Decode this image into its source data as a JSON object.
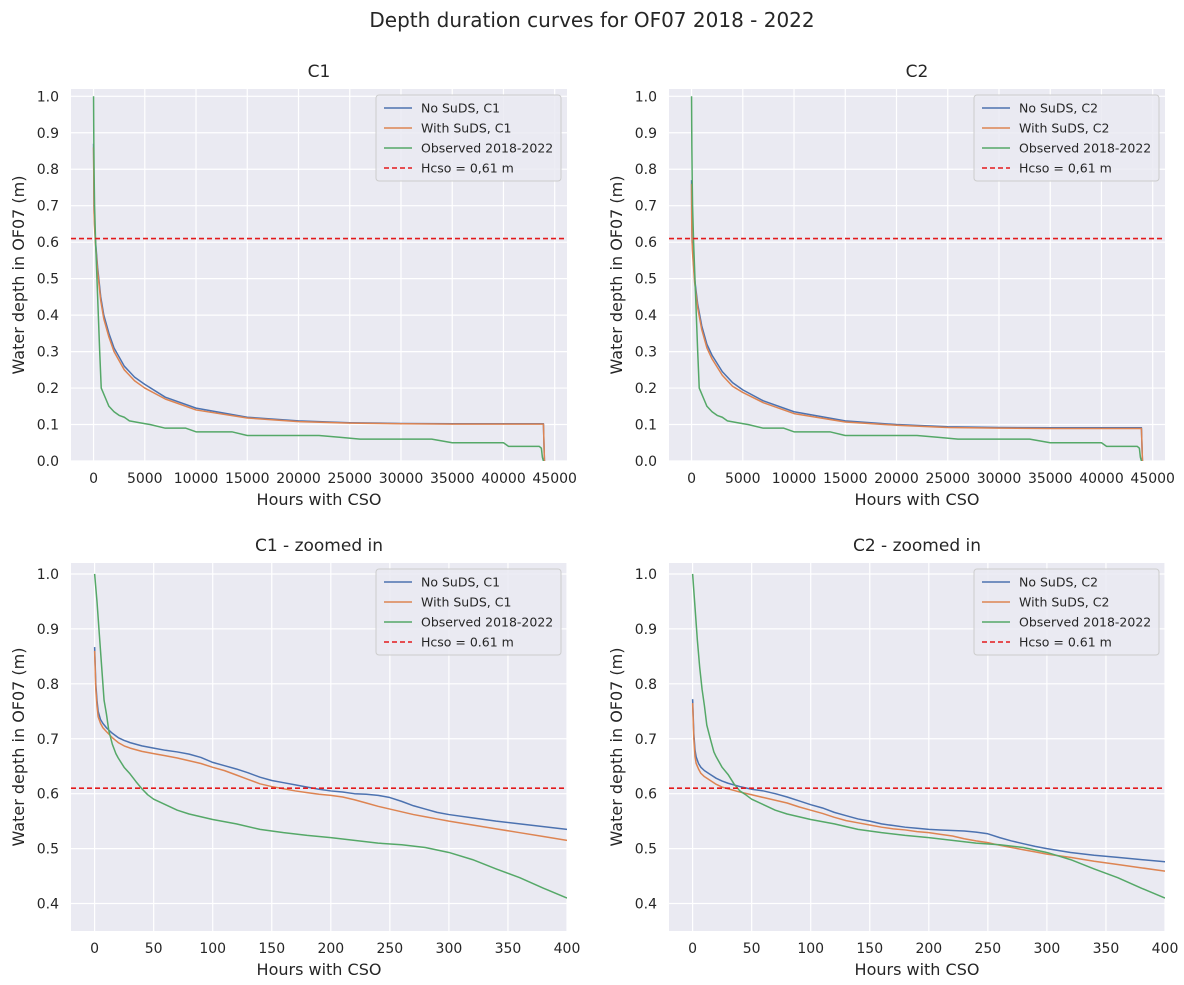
{
  "figure": {
    "title": "Depth duration curves for OF07 2018 - 2022"
  },
  "colors": {
    "background": "#eaeaf2",
    "grid": "#ffffff",
    "no_suds": "#4c72b0",
    "with_suds": "#dd8452",
    "observed": "#55a868",
    "hcso": "#e31a1c"
  },
  "chart_data": [
    {
      "type": "line",
      "title": "C1",
      "xlabel": "Hours with CSO",
      "ylabel": "Water depth in OF07 (m)",
      "xlim": [
        -2200,
        46200
      ],
      "ylim": [
        0,
        1.02
      ],
      "xticks": [
        0,
        5000,
        10000,
        15000,
        20000,
        25000,
        30000,
        35000,
        40000,
        45000
      ],
      "yticks": [
        0.0,
        0.1,
        0.2,
        0.3,
        0.4,
        0.5,
        0.6,
        0.7,
        0.8,
        0.9,
        1.0
      ],
      "ytick_labels": [
        "0.0",
        "0.1",
        "0.2",
        "0.3",
        "0.4",
        "0.5",
        "0.6",
        "0.7",
        "0.8",
        "0.9",
        "1.0"
      ],
      "grid": true,
      "legend_position": "top-right",
      "hline": {
        "y": 0.61,
        "label": "Hcso = 0,61 m"
      },
      "series": [
        {
          "name": "No SuDS, C1",
          "x": [
            0,
            50,
            100,
            200,
            400,
            700,
            1000,
            1500,
            2000,
            3000,
            4000,
            5000,
            7000,
            10000,
            15000,
            20000,
            25000,
            30000,
            35000,
            40000,
            43900,
            43950,
            44000
          ],
          "y": [
            0.87,
            0.69,
            0.65,
            0.6,
            0.53,
            0.45,
            0.4,
            0.35,
            0.31,
            0.26,
            0.23,
            0.21,
            0.175,
            0.145,
            0.12,
            0.11,
            0.105,
            0.103,
            0.102,
            0.102,
            0.102,
            0.05,
            0.0
          ]
        },
        {
          "name": "With SuDS, C1",
          "x": [
            0,
            50,
            100,
            200,
            400,
            700,
            1000,
            1500,
            2000,
            3000,
            4000,
            5000,
            7000,
            10000,
            15000,
            20000,
            25000,
            30000,
            35000,
            40000,
            43900,
            43950,
            44000
          ],
          "y": [
            0.86,
            0.68,
            0.64,
            0.59,
            0.52,
            0.44,
            0.39,
            0.34,
            0.3,
            0.25,
            0.22,
            0.2,
            0.17,
            0.14,
            0.118,
            0.108,
            0.104,
            0.102,
            0.101,
            0.101,
            0.101,
            0.05,
            0.0
          ]
        },
        {
          "name": "Observed 2018-2022",
          "x": [
            0,
            30,
            60,
            100,
            200,
            400,
            600,
            750,
            900,
            1200,
            1500,
            2000,
            2500,
            3000,
            3500,
            4500,
            5500,
            7000,
            9000,
            10000,
            12000,
            13500,
            15000,
            17000,
            20000,
            22000,
            24000,
            26000,
            30000,
            33000,
            35000,
            38000,
            40000,
            40500,
            43500,
            43700,
            43800,
            43900
          ],
          "y": [
            1.0,
            0.86,
            0.78,
            0.7,
            0.6,
            0.45,
            0.3,
            0.2,
            0.19,
            0.17,
            0.15,
            0.135,
            0.125,
            0.12,
            0.11,
            0.105,
            0.1,
            0.09,
            0.09,
            0.08,
            0.08,
            0.08,
            0.07,
            0.07,
            0.07,
            0.07,
            0.065,
            0.06,
            0.06,
            0.06,
            0.05,
            0.05,
            0.05,
            0.04,
            0.04,
            0.035,
            0.01,
            0.0
          ]
        }
      ]
    },
    {
      "type": "line",
      "title": "C2",
      "xlabel": "Hours with CSO",
      "ylabel": "Water depth in OF07 (m)",
      "xlim": [
        -2200,
        46200
      ],
      "ylim": [
        0,
        1.02
      ],
      "xticks": [
        0,
        5000,
        10000,
        15000,
        20000,
        25000,
        30000,
        35000,
        40000,
        45000
      ],
      "yticks": [
        0.0,
        0.1,
        0.2,
        0.3,
        0.4,
        0.5,
        0.6,
        0.7,
        0.8,
        0.9,
        1.0
      ],
      "ytick_labels": [
        "0.0",
        "0.1",
        "0.2",
        "0.3",
        "0.4",
        "0.5",
        "0.6",
        "0.7",
        "0.8",
        "0.9",
        "1.0"
      ],
      "grid": true,
      "legend_position": "top-right",
      "hline": {
        "y": 0.61,
        "label": "Hcso = 0,61 m"
      },
      "series": [
        {
          "name": "No SuDS, C2",
          "x": [
            0,
            20,
            50,
            100,
            300,
            600,
            1000,
            1500,
            2000,
            3000,
            4000,
            5000,
            7000,
            10000,
            15000,
            20000,
            25000,
            30000,
            35000,
            40000,
            43900,
            43950,
            44000
          ],
          "y": [
            0.77,
            0.66,
            0.61,
            0.58,
            0.5,
            0.43,
            0.37,
            0.32,
            0.29,
            0.245,
            0.215,
            0.195,
            0.165,
            0.135,
            0.11,
            0.1,
            0.094,
            0.092,
            0.091,
            0.091,
            0.091,
            0.045,
            0.0
          ]
        },
        {
          "name": "With SuDS, C2",
          "x": [
            0,
            20,
            50,
            100,
            300,
            600,
            1000,
            1500,
            2000,
            3000,
            4000,
            5000,
            7000,
            10000,
            15000,
            20000,
            25000,
            30000,
            35000,
            40000,
            43900,
            43950,
            44000
          ],
          "y": [
            0.76,
            0.65,
            0.6,
            0.57,
            0.49,
            0.42,
            0.36,
            0.31,
            0.28,
            0.235,
            0.205,
            0.188,
            0.16,
            0.13,
            0.107,
            0.098,
            0.092,
            0.09,
            0.089,
            0.089,
            0.089,
            0.045,
            0.0
          ]
        },
        {
          "name": "Observed 2018-2022",
          "x": [
            0,
            30,
            60,
            100,
            200,
            400,
            600,
            750,
            900,
            1200,
            1500,
            2000,
            2500,
            3000,
            3500,
            4500,
            5500,
            7000,
            9000,
            10000,
            12000,
            13500,
            15000,
            17000,
            20000,
            22000,
            24000,
            26000,
            30000,
            33000,
            35000,
            38000,
            40000,
            40500,
            43500,
            43700,
            43800,
            43900
          ],
          "y": [
            1.0,
            0.86,
            0.78,
            0.7,
            0.6,
            0.45,
            0.3,
            0.2,
            0.19,
            0.17,
            0.15,
            0.135,
            0.125,
            0.12,
            0.11,
            0.105,
            0.1,
            0.09,
            0.09,
            0.08,
            0.08,
            0.08,
            0.07,
            0.07,
            0.07,
            0.07,
            0.065,
            0.06,
            0.06,
            0.06,
            0.05,
            0.05,
            0.05,
            0.04,
            0.04,
            0.035,
            0.01,
            0.0
          ]
        }
      ]
    },
    {
      "type": "line",
      "title": "C1 - zoomed in",
      "xlabel": "Hours with CSO",
      "ylabel": "Water depth in OF07 (m)",
      "xlim": [
        -20,
        400
      ],
      "ylim": [
        0.35,
        1.02
      ],
      "xticks": [
        0,
        50,
        100,
        150,
        200,
        250,
        300,
        350,
        400
      ],
      "yticks": [
        0.4,
        0.5,
        0.6,
        0.7,
        0.8,
        0.9,
        1.0
      ],
      "ytick_labels": [
        "0.4",
        "0.5",
        "0.6",
        "0.7",
        "0.8",
        "0.9",
        "1.0"
      ],
      "grid": true,
      "legend_position": "top-right",
      "hline": {
        "y": 0.61,
        "label": "Hcso = 0.61 m"
      },
      "series": [
        {
          "name": "No SuDS, C1",
          "x": [
            0,
            1,
            2,
            3,
            5,
            7,
            10,
            15,
            20,
            25,
            30,
            40,
            50,
            60,
            70,
            80,
            90,
            100,
            110,
            120,
            130,
            140,
            150,
            160,
            170,
            180,
            190,
            200,
            210,
            220,
            230,
            240,
            250,
            260,
            270,
            280,
            290,
            300,
            320,
            340,
            360,
            380,
            400
          ],
          "y": [
            0.867,
            0.8,
            0.77,
            0.75,
            0.735,
            0.728,
            0.72,
            0.71,
            0.702,
            0.697,
            0.693,
            0.687,
            0.683,
            0.679,
            0.676,
            0.672,
            0.666,
            0.657,
            0.651,
            0.645,
            0.638,
            0.63,
            0.624,
            0.62,
            0.616,
            0.612,
            0.608,
            0.605,
            0.603,
            0.6,
            0.599,
            0.597,
            0.593,
            0.586,
            0.578,
            0.572,
            0.566,
            0.562,
            0.556,
            0.55,
            0.545,
            0.54,
            0.535
          ]
        },
        {
          "name": "With SuDS, C1",
          "x": [
            0,
            1,
            2,
            3,
            5,
            7,
            10,
            15,
            20,
            25,
            30,
            40,
            50,
            60,
            70,
            80,
            90,
            100,
            110,
            120,
            130,
            140,
            150,
            160,
            170,
            180,
            190,
            200,
            210,
            220,
            230,
            240,
            250,
            260,
            270,
            280,
            290,
            300,
            320,
            340,
            360,
            380,
            400
          ],
          "y": [
            0.86,
            0.79,
            0.76,
            0.74,
            0.728,
            0.72,
            0.713,
            0.702,
            0.693,
            0.687,
            0.683,
            0.677,
            0.673,
            0.669,
            0.665,
            0.66,
            0.655,
            0.648,
            0.642,
            0.634,
            0.626,
            0.618,
            0.613,
            0.609,
            0.605,
            0.602,
            0.599,
            0.597,
            0.594,
            0.589,
            0.583,
            0.577,
            0.572,
            0.567,
            0.562,
            0.558,
            0.554,
            0.55,
            0.543,
            0.536,
            0.529,
            0.522,
            0.515
          ]
        },
        {
          "name": "Observed 2018-2022",
          "x": [
            0,
            2,
            4,
            6,
            8,
            10,
            12,
            15,
            18,
            20,
            25,
            30,
            35,
            40,
            45,
            50,
            60,
            70,
            80,
            90,
            100,
            120,
            140,
            160,
            180,
            200,
            220,
            240,
            260,
            280,
            300,
            320,
            340,
            360,
            380,
            400
          ],
          "y": [
            1.0,
            0.95,
            0.89,
            0.83,
            0.77,
            0.745,
            0.715,
            0.69,
            0.673,
            0.665,
            0.648,
            0.636,
            0.622,
            0.609,
            0.598,
            0.59,
            0.58,
            0.57,
            0.563,
            0.558,
            0.553,
            0.545,
            0.535,
            0.529,
            0.524,
            0.52,
            0.515,
            0.51,
            0.507,
            0.502,
            0.493,
            0.48,
            0.463,
            0.447,
            0.428,
            0.41
          ]
        }
      ]
    },
    {
      "type": "line",
      "title": "C2 - zoomed in",
      "xlabel": "Hours with CSO",
      "ylabel": "Water depth in OF07 (m)",
      "xlim": [
        -20,
        400
      ],
      "ylim": [
        0.35,
        1.02
      ],
      "xticks": [
        0,
        50,
        100,
        150,
        200,
        250,
        300,
        350,
        400
      ],
      "yticks": [
        0.4,
        0.5,
        0.6,
        0.7,
        0.8,
        0.9,
        1.0
      ],
      "ytick_labels": [
        "0.4",
        "0.5",
        "0.6",
        "0.7",
        "0.8",
        "0.9",
        "1.0"
      ],
      "grid": true,
      "legend_position": "top-right",
      "hline": {
        "y": 0.61,
        "label": "Hcso = 0.61 m"
      },
      "series": [
        {
          "name": "No SuDS, C2",
          "x": [
            0,
            1,
            2,
            3,
            5,
            7,
            10,
            15,
            20,
            25,
            30,
            40,
            50,
            60,
            70,
            80,
            90,
            100,
            110,
            120,
            130,
            140,
            150,
            160,
            170,
            180,
            190,
            200,
            210,
            220,
            230,
            240,
            250,
            260,
            270,
            280,
            290,
            300,
            320,
            340,
            360,
            380,
            400
          ],
          "y": [
            0.772,
            0.71,
            0.68,
            0.667,
            0.655,
            0.648,
            0.642,
            0.635,
            0.628,
            0.623,
            0.619,
            0.613,
            0.608,
            0.605,
            0.6,
            0.594,
            0.587,
            0.58,
            0.574,
            0.566,
            0.56,
            0.554,
            0.55,
            0.545,
            0.542,
            0.539,
            0.537,
            0.535,
            0.534,
            0.533,
            0.532,
            0.53,
            0.527,
            0.52,
            0.514,
            0.509,
            0.504,
            0.5,
            0.493,
            0.488,
            0.484,
            0.48,
            0.476
          ]
        },
        {
          "name": "With SuDS, C2",
          "x": [
            0,
            1,
            2,
            3,
            5,
            7,
            10,
            15,
            20,
            25,
            30,
            40,
            50,
            60,
            70,
            80,
            90,
            100,
            110,
            120,
            130,
            140,
            150,
            160,
            170,
            180,
            190,
            200,
            210,
            220,
            230,
            240,
            250,
            260,
            270,
            280,
            290,
            300,
            320,
            340,
            360,
            380,
            400
          ],
          "y": [
            0.765,
            0.7,
            0.668,
            0.655,
            0.645,
            0.637,
            0.631,
            0.624,
            0.617,
            0.612,
            0.609,
            0.603,
            0.598,
            0.593,
            0.588,
            0.583,
            0.576,
            0.57,
            0.564,
            0.557,
            0.551,
            0.547,
            0.543,
            0.539,
            0.536,
            0.534,
            0.531,
            0.529,
            0.526,
            0.523,
            0.518,
            0.514,
            0.511,
            0.506,
            0.502,
            0.498,
            0.494,
            0.49,
            0.484,
            0.477,
            0.471,
            0.465,
            0.459
          ]
        },
        {
          "name": "Observed 2018-2022",
          "x": [
            0,
            2,
            4,
            6,
            8,
            10,
            12,
            15,
            18,
            20,
            25,
            30,
            35,
            40,
            45,
            50,
            60,
            70,
            80,
            90,
            100,
            120,
            140,
            160,
            180,
            200,
            220,
            240,
            260,
            280,
            300,
            320,
            340,
            360,
            380,
            400
          ],
          "y": [
            1.0,
            0.94,
            0.88,
            0.83,
            0.79,
            0.76,
            0.725,
            0.7,
            0.676,
            0.667,
            0.648,
            0.635,
            0.618,
            0.605,
            0.598,
            0.59,
            0.58,
            0.57,
            0.563,
            0.558,
            0.553,
            0.545,
            0.535,
            0.529,
            0.524,
            0.52,
            0.515,
            0.51,
            0.507,
            0.502,
            0.493,
            0.48,
            0.463,
            0.447,
            0.428,
            0.41
          ]
        }
      ]
    }
  ]
}
